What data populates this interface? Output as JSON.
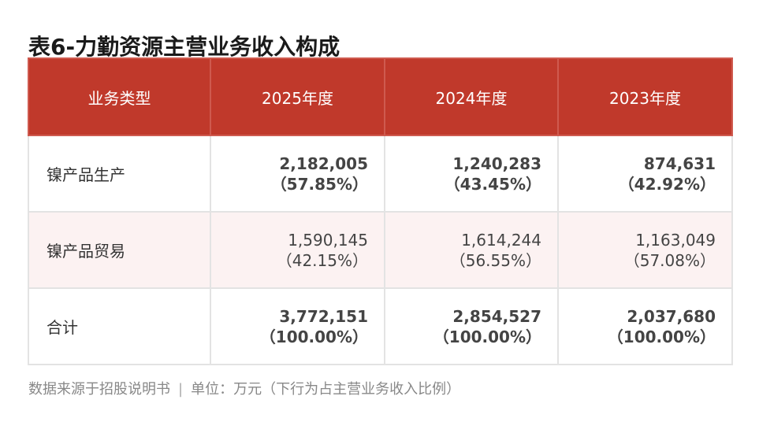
{
  "title": "表6-力勤资源主营业务收入构成",
  "headers": [
    "业务类型",
    "2025年度",
    "2024年度",
    "2023年度"
  ],
  "rows": [
    {
      "label": "镍产品生产",
      "cells": [
        {
          "value": "2,182,005",
          "pct": "（57.85%）"
        },
        {
          "value": "1,240,283",
          "pct": "（43.45%）"
        },
        {
          "value": "874,631",
          "pct": "（42.92%）"
        }
      ]
    },
    {
      "label": "镍产品贸易",
      "cells": [
        {
          "value": "1,590,145",
          "pct": "（42.15%）"
        },
        {
          "value": "1,614,244",
          "pct": "（56.55%）"
        },
        {
          "value": "1,163,049",
          "pct": "（57.08%）"
        }
      ]
    },
    {
      "label": "合计",
      "cells": [
        {
          "value": "3,772,151",
          "pct": "（100.00%）"
        },
        {
          "value": "2,854,527",
          "pct": "（100.00%）"
        },
        {
          "value": "2,037,680",
          "pct": "（100.00%）"
        }
      ]
    }
  ],
  "footer": {
    "source": "数据来源于招股说明书",
    "separator": "|",
    "unit": "单位：万元（下行为占主营业务收入比例）"
  },
  "colors": {
    "header_bg": "#c0392b",
    "highlight": "#c0392b",
    "alt_row_bg": "#fcf2f2"
  }
}
